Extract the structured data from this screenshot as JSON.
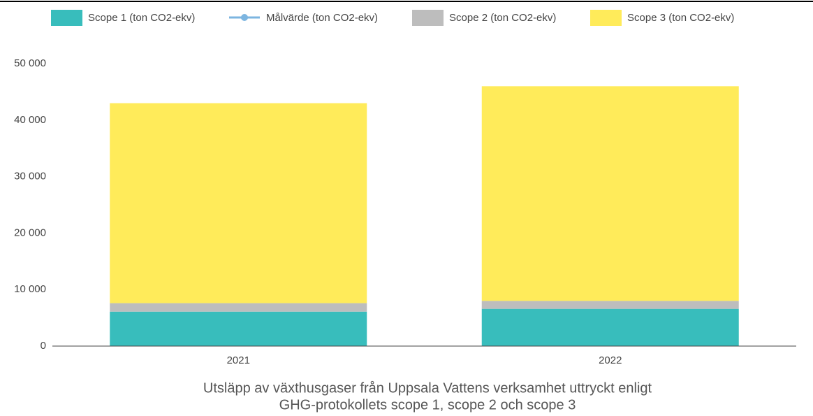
{
  "chart_data": {
    "type": "bar",
    "stacked": true,
    "title": [
      "Utsläpp av växthusgaser från Uppsala Vattens verksamhet uttryckt enligt",
      "GHG-protokollets scope 1, scope 2 och scope 3"
    ],
    "categories": [
      "2021",
      "2022"
    ],
    "series": [
      {
        "name": "Scope 1 (ton CO2-ekv)",
        "type": "bar",
        "color": "#38bdbc",
        "values": [
          6100,
          6600
        ]
      },
      {
        "name": "Målvärde (ton CO2-ekv)",
        "type": "line",
        "color": "#7cb5e0",
        "values": [
          null,
          null
        ]
      },
      {
        "name": "Scope 2 (ton CO2-ekv)",
        "type": "bar",
        "color": "#bdbdbd",
        "values": [
          1500,
          1400
        ]
      },
      {
        "name": "Scope 3 (ton CO2-ekv)",
        "type": "bar",
        "color": "#ffeb5a",
        "values": [
          35400,
          38000
        ]
      }
    ],
    "ylim": [
      0,
      50000
    ],
    "yticks": [
      0,
      {
        "value": 10000,
        "label": "10 000"
      },
      {
        "value": 20000,
        "label": "20 000"
      },
      {
        "value": 30000,
        "label": "30 000"
      },
      {
        "value": 40000,
        "label": "40 000"
      },
      {
        "value": 50000,
        "label": "50 000"
      }
    ],
    "legend": "top"
  }
}
